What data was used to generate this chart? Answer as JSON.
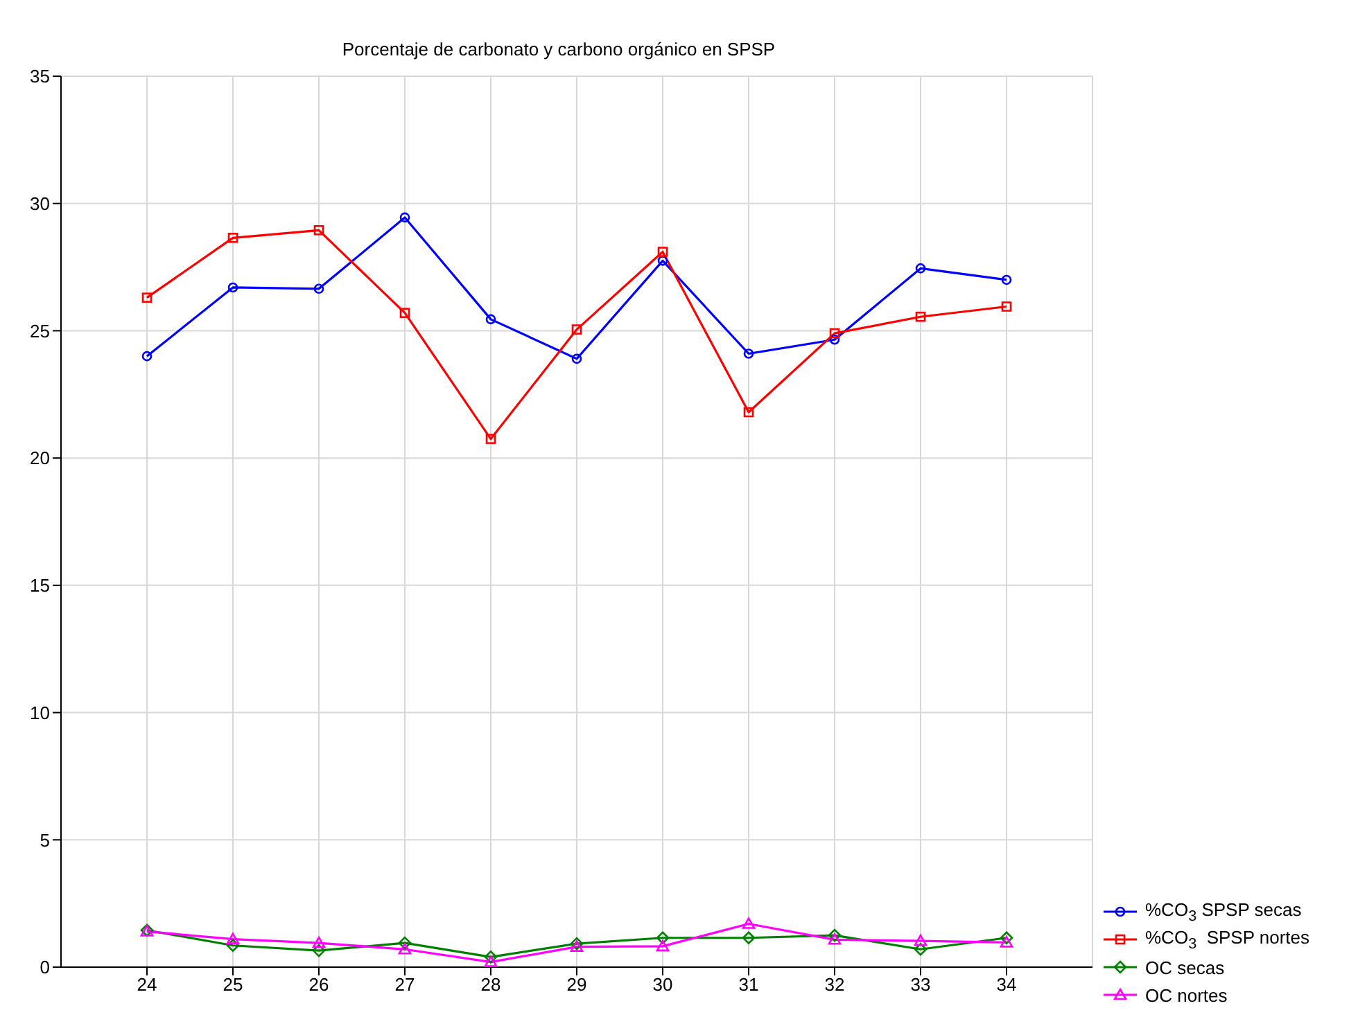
{
  "chart_data": {
    "type": "line",
    "title": "Porcentaje de carbonato y carbono orgánico en SPSP",
    "x": [
      24,
      25,
      26,
      27,
      28,
      29,
      30,
      31,
      32,
      33,
      34
    ],
    "xlim": [
      23,
      35
    ],
    "xticks": [
      24,
      25,
      26,
      27,
      28,
      29,
      30,
      31,
      32,
      33,
      34
    ],
    "ylim": [
      0,
      35
    ],
    "yticks": [
      0,
      5,
      10,
      15,
      20,
      25,
      30,
      35
    ],
    "grid": true,
    "legend": "bottom right",
    "line_style": "solid",
    "series": [
      {
        "name": "%CO$_{3}$ SPSP secas",
        "color": "#0000ff",
        "marker": "circle",
        "values": [
          24.0,
          26.7,
          26.65,
          29.45,
          25.45,
          23.9,
          27.75,
          24.1,
          24.65,
          27.45,
          27.0
        ]
      },
      {
        "name": "%CO$_{3}$  SPSP nortes",
        "color": "#ff0000",
        "marker": "square",
        "values": [
          26.3,
          28.65,
          28.95,
          25.7,
          20.75,
          25.05,
          28.1,
          21.8,
          24.9,
          25.55,
          25.95
        ]
      },
      {
        "name": "OC secas",
        "color": "#008000",
        "marker": "diamond",
        "values": [
          1.45,
          0.85,
          0.65,
          0.95,
          0.4,
          0.92,
          1.15,
          1.15,
          1.25,
          0.7,
          1.15
        ]
      },
      {
        "name": "OC nortes",
        "color": "#ff00ff",
        "marker": "triangle",
        "values": [
          1.4,
          1.1,
          0.95,
          0.7,
          0.2,
          0.8,
          0.82,
          1.7,
          1.08,
          1.03,
          0.97
        ]
      }
    ]
  }
}
